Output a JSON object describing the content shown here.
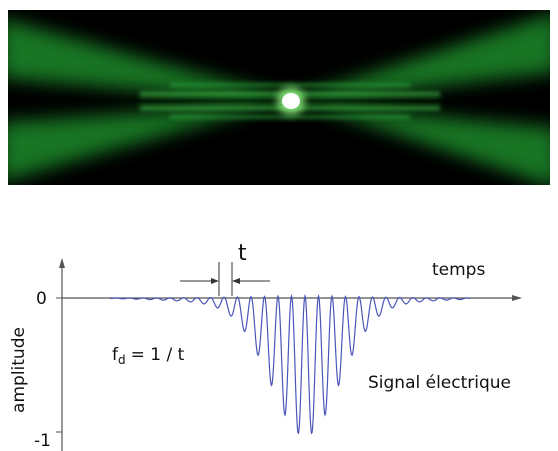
{
  "labels": {
    "t": "t",
    "temps": "temps",
    "zero": "0",
    "minus_one": "-1",
    "amplitude": "amplitude",
    "fd_f": "f",
    "fd_sub": "d",
    "fd_rest": "= 1 / t",
    "signal": "Signal électrique"
  }
}
